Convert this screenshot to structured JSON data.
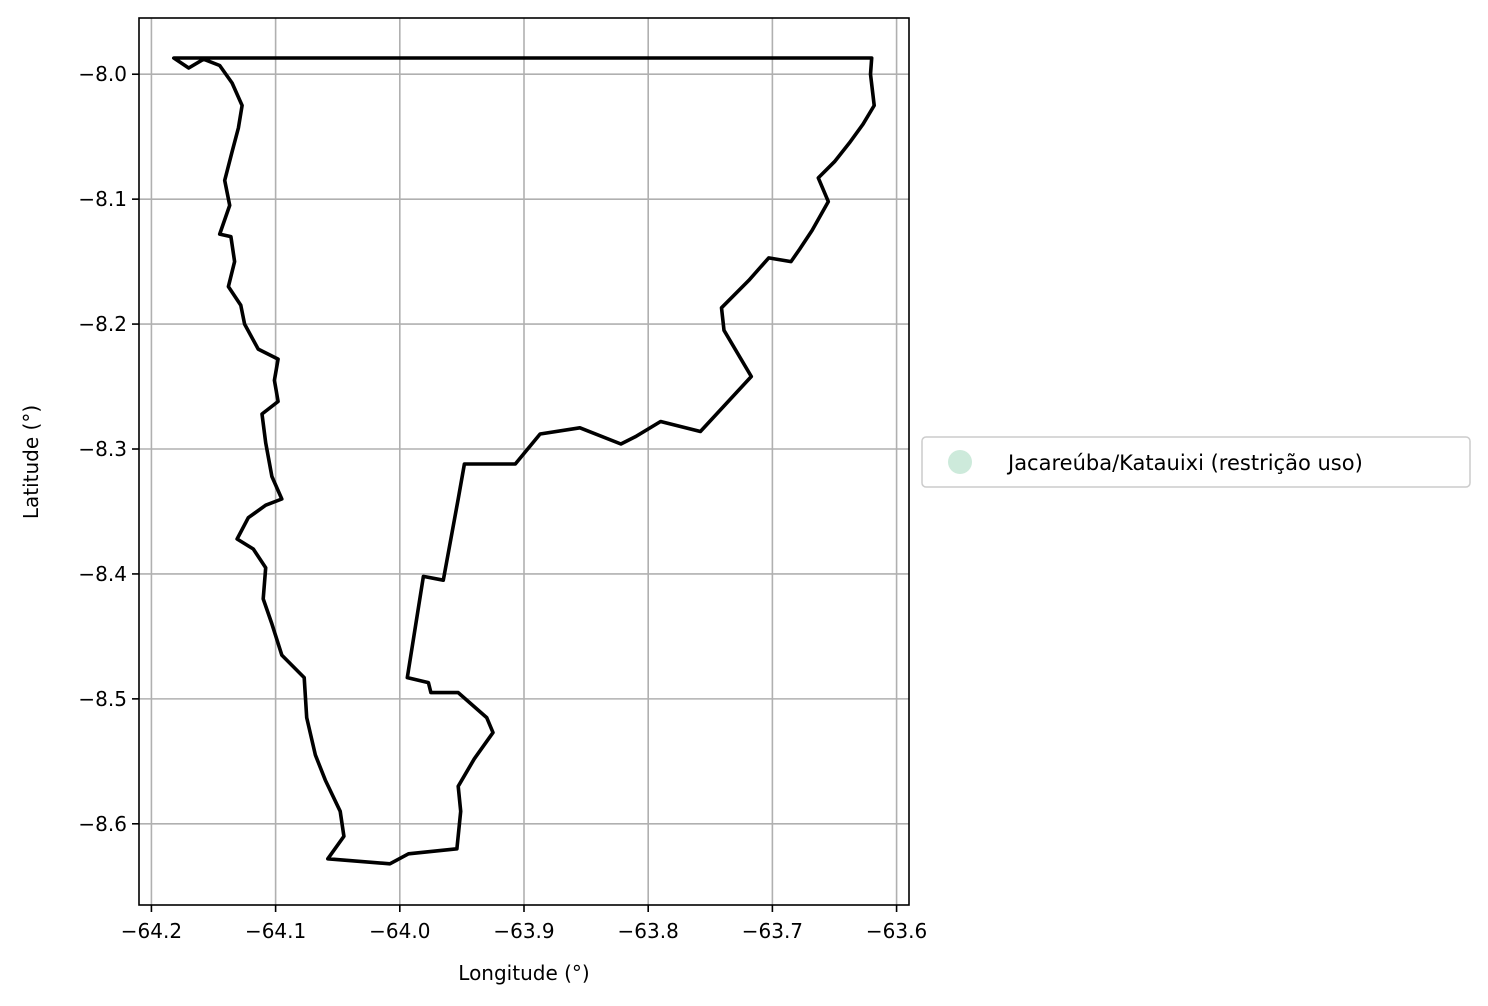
{
  "chart_data": {
    "type": "map",
    "title": "",
    "xlabel": "Longitude (°)",
    "ylabel": "Latitude (°)",
    "xlim": [
      -64.21,
      -63.59
    ],
    "ylim": [
      -8.665,
      -7.955
    ],
    "grid": true,
    "legend_placement": "center-right outside plot",
    "x_ticks": [
      -64.2,
      -64.1,
      -64.0,
      -63.9,
      -63.8,
      -63.7,
      -63.6
    ],
    "x_tick_labels": [
      "−64.2",
      "−64.1",
      "−64.0",
      "−63.9",
      "−63.8",
      "−63.7",
      "−63.6"
    ],
    "y_ticks": [
      -8.0,
      -8.1,
      -8.2,
      -8.3,
      -8.4,
      -8.5,
      -8.6
    ],
    "y_tick_labels": [
      "−8.0",
      "−8.1",
      "−8.2",
      "−8.3",
      "−8.4",
      "−8.5",
      "−8.6"
    ],
    "series": [
      {
        "name": "Jacareúba/Katauixi (restrição uso)",
        "fill_color": "#cdeadb",
        "edge_color": "#000000",
        "boundary": [
          [
            -64.182,
            -7.987
          ],
          [
            -63.62,
            -7.987
          ],
          [
            -63.621,
            -8.0
          ],
          [
            -63.618,
            -8.025
          ],
          [
            -63.627,
            -8.04
          ],
          [
            -63.638,
            -8.055
          ],
          [
            -63.65,
            -8.07
          ],
          [
            -63.663,
            -8.083
          ],
          [
            -63.655,
            -8.102
          ],
          [
            -63.668,
            -8.125
          ],
          [
            -63.678,
            -8.14
          ],
          [
            -63.685,
            -8.15
          ],
          [
            -63.703,
            -8.147
          ],
          [
            -63.719,
            -8.165
          ],
          [
            -63.741,
            -8.187
          ],
          [
            -63.739,
            -8.205
          ],
          [
            -63.717,
            -8.242
          ],
          [
            -63.758,
            -8.286
          ],
          [
            -63.79,
            -8.278
          ],
          [
            -63.81,
            -8.29
          ],
          [
            -63.822,
            -8.296
          ],
          [
            -63.855,
            -8.283
          ],
          [
            -63.887,
            -8.288
          ],
          [
            -63.907,
            -8.312
          ],
          [
            -63.948,
            -8.312
          ],
          [
            -63.953,
            -8.34
          ],
          [
            -63.965,
            -8.405
          ],
          [
            -63.981,
            -8.402
          ],
          [
            -63.994,
            -8.483
          ],
          [
            -63.977,
            -8.487
          ],
          [
            -63.975,
            -8.495
          ],
          [
            -63.953,
            -8.495
          ],
          [
            -63.93,
            -8.515
          ],
          [
            -63.925,
            -8.527
          ],
          [
            -63.94,
            -8.548
          ],
          [
            -63.953,
            -8.57
          ],
          [
            -63.951,
            -8.59
          ],
          [
            -63.954,
            -8.62
          ],
          [
            -63.993,
            -8.624
          ],
          [
            -64.008,
            -8.632
          ],
          [
            -64.058,
            -8.628
          ],
          [
            -64.045,
            -8.61
          ],
          [
            -64.048,
            -8.59
          ],
          [
            -64.06,
            -8.565
          ],
          [
            -64.068,
            -8.545
          ],
          [
            -64.075,
            -8.515
          ],
          [
            -64.077,
            -8.483
          ],
          [
            -64.095,
            -8.465
          ],
          [
            -64.103,
            -8.44
          ],
          [
            -64.11,
            -8.42
          ],
          [
            -64.108,
            -8.395
          ],
          [
            -64.118,
            -8.38
          ],
          [
            -64.131,
            -8.372
          ],
          [
            -64.122,
            -8.355
          ],
          [
            -64.108,
            -8.345
          ],
          [
            -64.095,
            -8.34
          ],
          [
            -64.103,
            -8.322
          ],
          [
            -64.108,
            -8.295
          ],
          [
            -64.111,
            -8.272
          ],
          [
            -64.098,
            -8.262
          ],
          [
            -64.101,
            -8.245
          ],
          [
            -64.098,
            -8.228
          ],
          [
            -64.114,
            -8.22
          ],
          [
            -64.125,
            -8.2
          ],
          [
            -64.128,
            -8.185
          ],
          [
            -64.138,
            -8.17
          ],
          [
            -64.133,
            -8.15
          ],
          [
            -64.136,
            -8.13
          ],
          [
            -64.145,
            -8.128
          ],
          [
            -64.137,
            -8.105
          ],
          [
            -64.141,
            -8.085
          ],
          [
            -64.135,
            -8.062
          ],
          [
            -64.13,
            -8.043
          ],
          [
            -64.127,
            -8.025
          ],
          [
            -64.135,
            -8.007
          ],
          [
            -64.145,
            -7.993
          ],
          [
            -64.158,
            -7.988
          ],
          [
            -64.17,
            -7.995
          ],
          [
            -64.182,
            -7.987
          ]
        ]
      }
    ]
  }
}
